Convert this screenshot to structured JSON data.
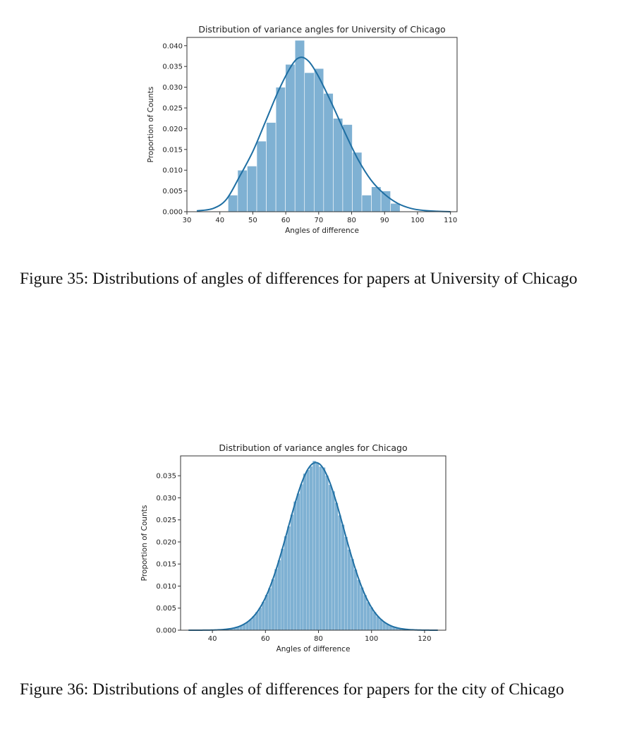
{
  "figures": [
    {
      "caption": "Figure 35: Distributions of angles of differences for papers at University of Chicago",
      "chart_data": {
        "type": "bar",
        "subtype": "histogram with density curve",
        "title": "Distribution of variance angles for University of Chicago",
        "xlabel": "Angles of difference",
        "ylabel": "Proportion of Counts",
        "xlim": [
          30,
          112
        ],
        "ylim": [
          0,
          0.042
        ],
        "xticks": [
          30,
          40,
          50,
          60,
          70,
          80,
          90,
          100,
          110
        ],
        "yticks": [
          0.0,
          0.005,
          0.01,
          0.015,
          0.02,
          0.025,
          0.03,
          0.035,
          0.04
        ],
        "ytick_labels": [
          "0.000",
          "0.005",
          "0.010",
          "0.015",
          "0.020",
          "0.025",
          "0.030",
          "0.035",
          "0.040"
        ],
        "bar_color": "#7fb1d3",
        "curve_color": "#1f6fa3",
        "bins": [
          {
            "x0": 42.5,
            "x1": 45.4,
            "value": 0.004
          },
          {
            "x0": 45.4,
            "x1": 48.3,
            "value": 0.01
          },
          {
            "x0": 48.3,
            "x1": 51.2,
            "value": 0.011
          },
          {
            "x0": 51.2,
            "x1": 54.1,
            "value": 0.017
          },
          {
            "x0": 54.1,
            "x1": 57.0,
            "value": 0.0215
          },
          {
            "x0": 57.0,
            "x1": 59.9,
            "value": 0.03
          },
          {
            "x0": 59.9,
            "x1": 62.8,
            "value": 0.0355
          },
          {
            "x0": 62.8,
            "x1": 65.7,
            "value": 0.0413
          },
          {
            "x0": 65.7,
            "x1": 68.6,
            "value": 0.0335
          },
          {
            "x0": 68.6,
            "x1": 71.5,
            "value": 0.0345
          },
          {
            "x0": 71.5,
            "x1": 74.4,
            "value": 0.0285
          },
          {
            "x0": 74.4,
            "x1": 77.3,
            "value": 0.0225
          },
          {
            "x0": 77.3,
            "x1": 80.2,
            "value": 0.021
          },
          {
            "x0": 80.2,
            "x1": 83.1,
            "value": 0.0143
          },
          {
            "x0": 83.1,
            "x1": 86.0,
            "value": 0.004
          },
          {
            "x0": 86.0,
            "x1": 88.9,
            "value": 0.006
          },
          {
            "x0": 88.9,
            "x1": 91.8,
            "value": 0.005
          },
          {
            "x0": 91.8,
            "x1": 94.7,
            "value": 0.002
          }
        ],
        "curve": {
          "x": [
            33,
            38,
            42,
            46,
            50,
            54,
            58,
            62,
            64.5,
            67,
            70,
            74,
            78,
            82,
            86,
            90,
            94,
            98,
            102,
            106,
            110
          ],
          "y": [
            0.0002,
            0.0008,
            0.003,
            0.0085,
            0.0145,
            0.022,
            0.0295,
            0.0355,
            0.0372,
            0.0362,
            0.0325,
            0.026,
            0.019,
            0.0125,
            0.0075,
            0.0042,
            0.002,
            0.0008,
            0.0003,
            0.0001,
            0.0
          ]
        }
      }
    },
    {
      "caption": "Figure 36: Distributions of angles of differences for papers for the city of Chicago",
      "chart_data": {
        "type": "bar",
        "subtype": "histogram with density curve",
        "title": "Distribution of variance angles for Chicago",
        "xlabel": "Angles of difference",
        "ylabel": "Proportion of Counts",
        "xlim": [
          28,
          128
        ],
        "ylim": [
          0,
          0.0395
        ],
        "xticks": [
          40,
          60,
          80,
          100,
          120
        ],
        "yticks": [
          0.0,
          0.005,
          0.01,
          0.015,
          0.02,
          0.025,
          0.03,
          0.035
        ],
        "ytick_labels": [
          "0.000",
          "0.005",
          "0.010",
          "0.015",
          "0.020",
          "0.025",
          "0.030",
          "0.035"
        ],
        "bar_color": "#7fb1d3",
        "curve_color": "#1f6fa3",
        "distribution": {
          "mean": 79,
          "sd": 10.5,
          "x_min": 31,
          "x_max": 125,
          "bin_width": 1.2
        },
        "curve": {
          "mean": 79,
          "sd": 10.5,
          "x_min": 31,
          "x_max": 125
        }
      }
    }
  ]
}
